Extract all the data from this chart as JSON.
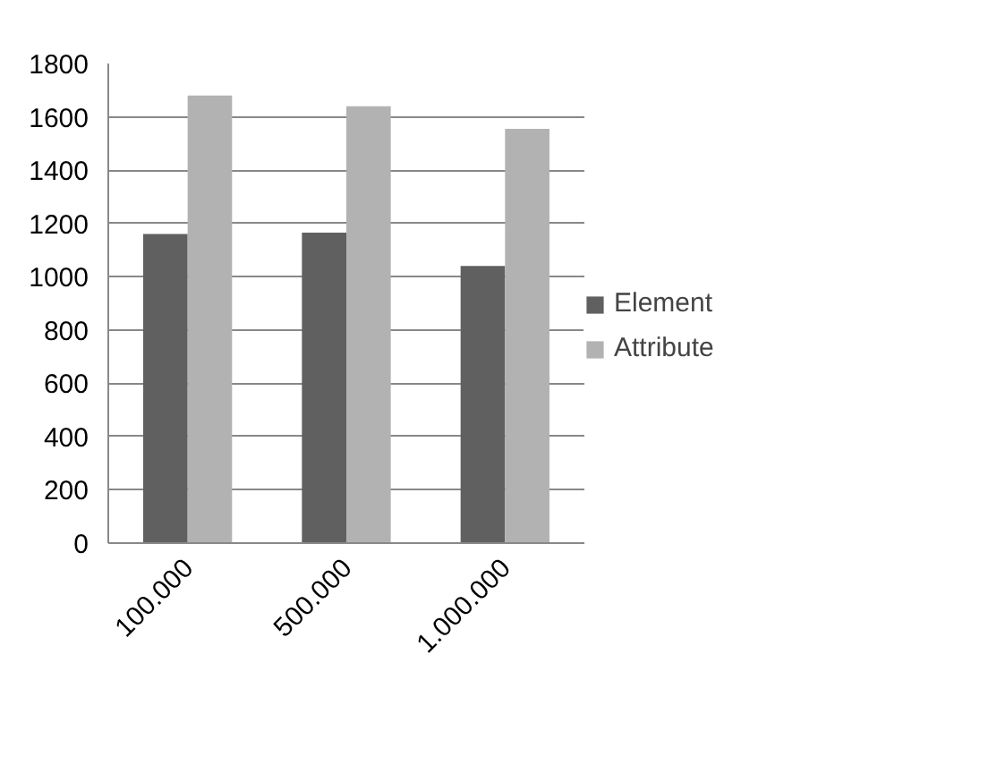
{
  "chart_data": {
    "type": "bar",
    "categories": [
      "100.000",
      "500.000",
      "1.000.000"
    ],
    "series": [
      {
        "name": "Element",
        "color": "#606060",
        "values": [
          1160,
          1165,
          1040
        ]
      },
      {
        "name": "Attribute",
        "color": "#b2b2b2",
        "values": [
          1680,
          1640,
          1555
        ]
      }
    ],
    "ylim": [
      0,
      1800
    ],
    "yticks": [
      0,
      200,
      400,
      600,
      800,
      1000,
      1200,
      1400,
      1600,
      1800
    ],
    "grid": "y",
    "legend": "right"
  }
}
